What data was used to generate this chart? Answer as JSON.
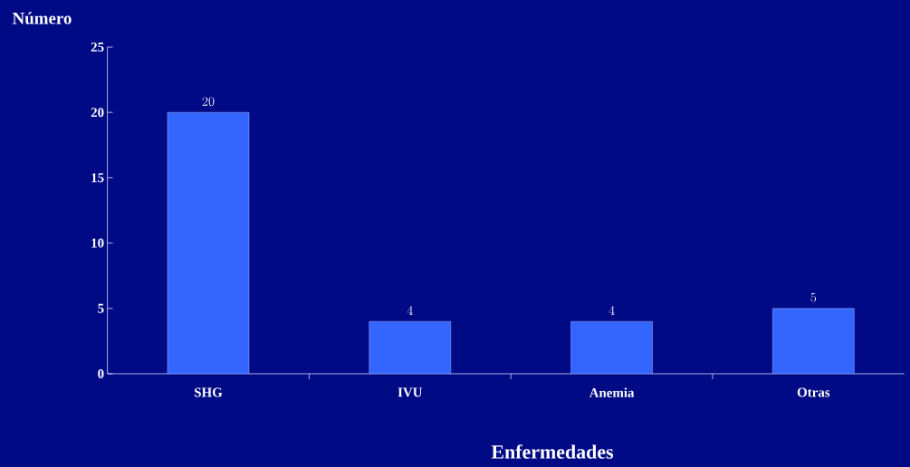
{
  "chart_data": {
    "type": "bar",
    "xlabel": "Enfermedades",
    "ylabel": "Número",
    "categories": [
      "SHG",
      "IVU",
      "Anemia",
      "Otras"
    ],
    "values": [
      20,
      4,
      4,
      5
    ],
    "color": "#3366ff",
    "ylim": [
      0,
      25
    ],
    "yticks": [
      0,
      5,
      10,
      15,
      20,
      25
    ],
    "data_labels": true,
    "grid": false
  }
}
